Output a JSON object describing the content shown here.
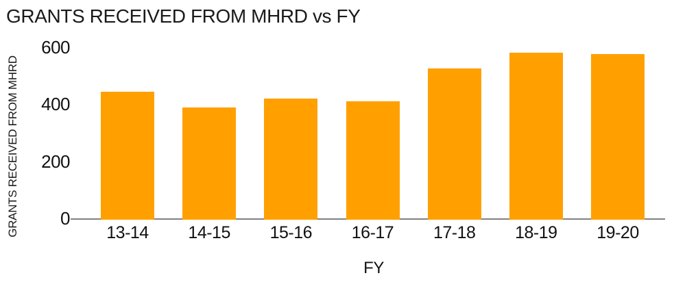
{
  "chart_data": {
    "type": "bar",
    "title": "GRANTS RECEIVED FROM MHRD vs FY",
    "categories": [
      "13-14",
      "14-15",
      "15-16",
      "16-17",
      "17-18",
      "18-19",
      "19-20"
    ],
    "values": [
      445,
      390,
      420,
      410,
      525,
      580,
      575
    ],
    "xlabel": "FY",
    "ylabel": "GRANTS RECEIVED FROM MHRD",
    "ylim": [
      0,
      600
    ],
    "yticks": [
      0,
      200,
      400,
      600
    ],
    "bar_color": "#ffa000",
    "axis_color": "#808080",
    "text_color": "#1a1a1a",
    "background": "#ffffff",
    "grid": false,
    "legend": "none"
  }
}
